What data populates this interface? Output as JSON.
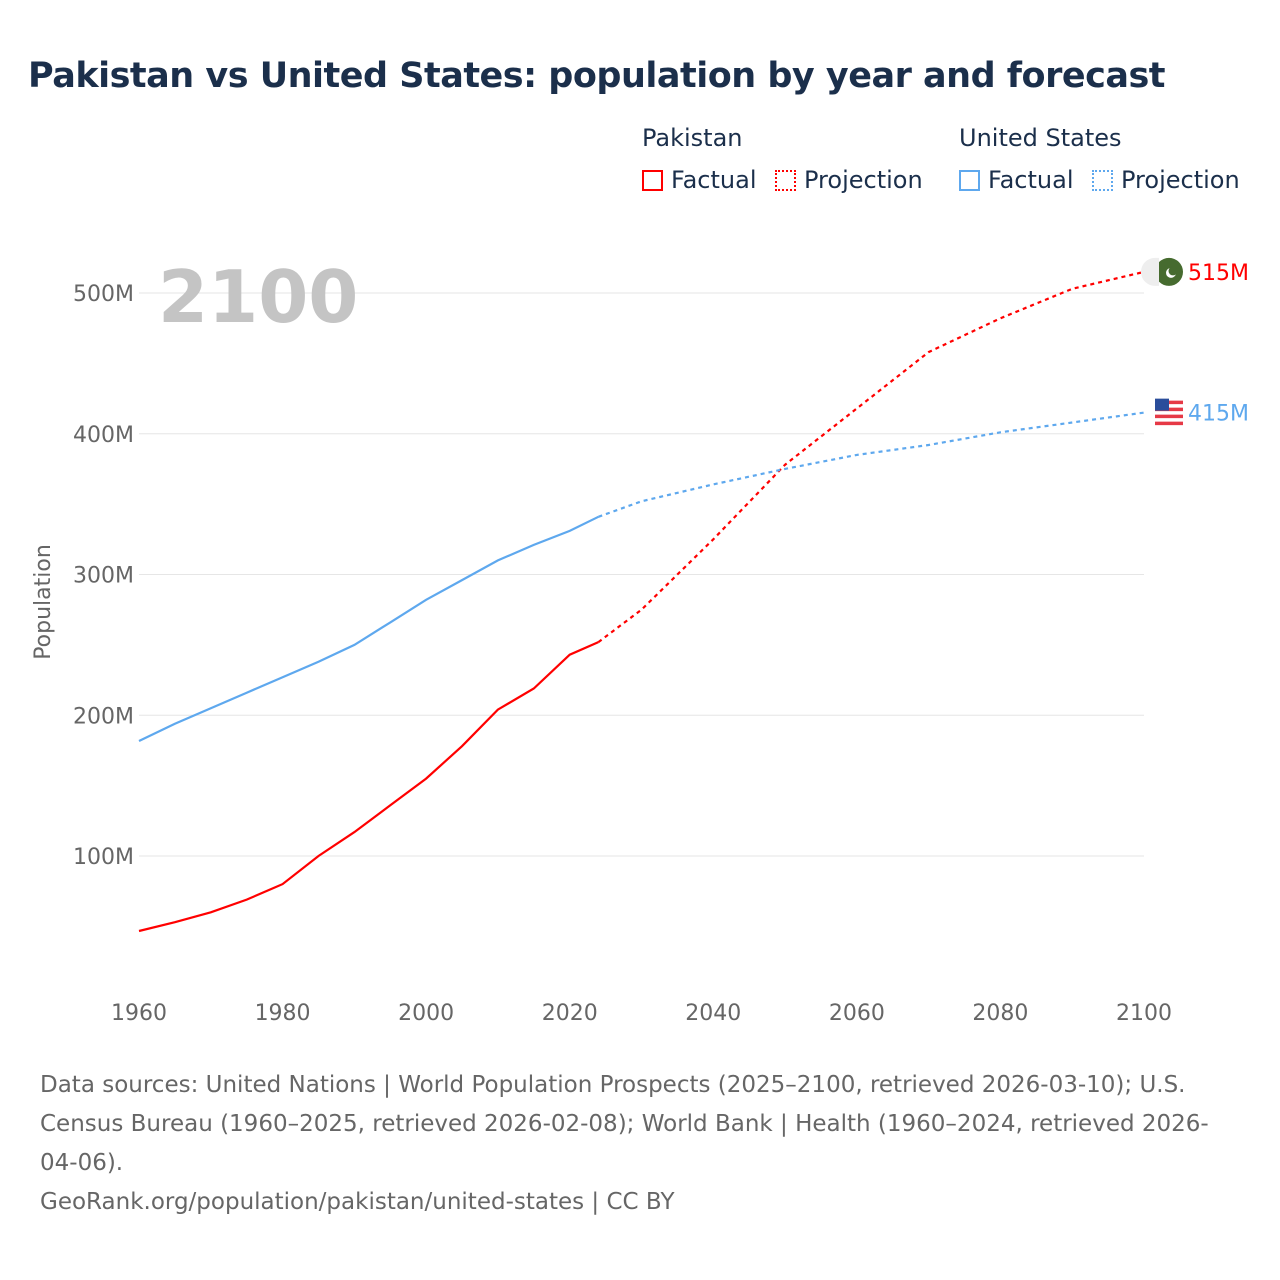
{
  "title": "Pakistan vs United States: population by year and forecast",
  "legend": {
    "groups": [
      {
        "name": "Pakistan",
        "factual": "Factual",
        "projection": "Projection",
        "color": "#ff0000"
      },
      {
        "name": "United States",
        "factual": "Factual",
        "projection": "Projection",
        "color": "#5ea8ee"
      }
    ]
  },
  "year_label": "2100",
  "footer": {
    "sources": "Data sources: United Nations | World Population Prospects (2025–2100, retrieved 2026-03-10); U.S. Census Bureau (1960–2025, retrieved 2026-02-08); World Bank | Health (1960–2024, retrieved 2026-04-06).",
    "credit": "GeoRank.org/population/pakistan/united-states | CC BY"
  },
  "chart_data": {
    "type": "line",
    "title": "Pakistan vs United States: population by year and forecast",
    "xlabel": "",
    "ylabel": "Population",
    "xlim": [
      1960,
      2100
    ],
    "ylim": [
      0,
      540
    ],
    "xticks": [
      1960,
      1980,
      2000,
      2020,
      2040,
      2060,
      2080,
      2100
    ],
    "xtick_labels": [
      "1960",
      "1980",
      "2000",
      "2020",
      "2040",
      "2060",
      "2080",
      "2100"
    ],
    "yticks": [
      100,
      200,
      300,
      400,
      500
    ],
    "ytick_labels": [
      "100M",
      "200M",
      "300M",
      "400M",
      "500M"
    ],
    "grid": true,
    "legend_position": "top-right",
    "series": [
      {
        "name": "Pakistan",
        "color": "#ff0000",
        "end_label": "515M",
        "flag": "pakistan-flag",
        "factual": {
          "x": [
            1960,
            1965,
            1970,
            1975,
            1980,
            1985,
            1990,
            1995,
            2000,
            2005,
            2010,
            2015,
            2020,
            2024
          ],
          "y": [
            46.7,
            53,
            60,
            69,
            80,
            100,
            117,
            136,
            155,
            178,
            204,
            219,
            243,
            252
          ]
        },
        "projection": {
          "x": [
            2024,
            2030,
            2040,
            2050,
            2060,
            2070,
            2080,
            2090,
            2100
          ],
          "y": [
            252,
            275,
            325,
            378,
            418,
            458,
            482,
            503,
            515
          ]
        }
      },
      {
        "name": "United States",
        "color": "#5ea8ee",
        "end_label": "415M",
        "flag": "us-flag",
        "factual": {
          "x": [
            1960,
            1965,
            1970,
            1975,
            1980,
            1985,
            1990,
            1995,
            2000,
            2005,
            2010,
            2015,
            2020,
            2024
          ],
          "y": [
            181.7,
            194,
            205,
            216,
            227,
            238,
            250,
            266,
            282,
            296,
            310,
            321,
            331,
            341
          ]
        },
        "projection": {
          "x": [
            2024,
            2030,
            2040,
            2050,
            2060,
            2070,
            2080,
            2090,
            2100
          ],
          "y": [
            341,
            352,
            364,
            375,
            385,
            392,
            401,
            408,
            415
          ]
        }
      }
    ]
  }
}
